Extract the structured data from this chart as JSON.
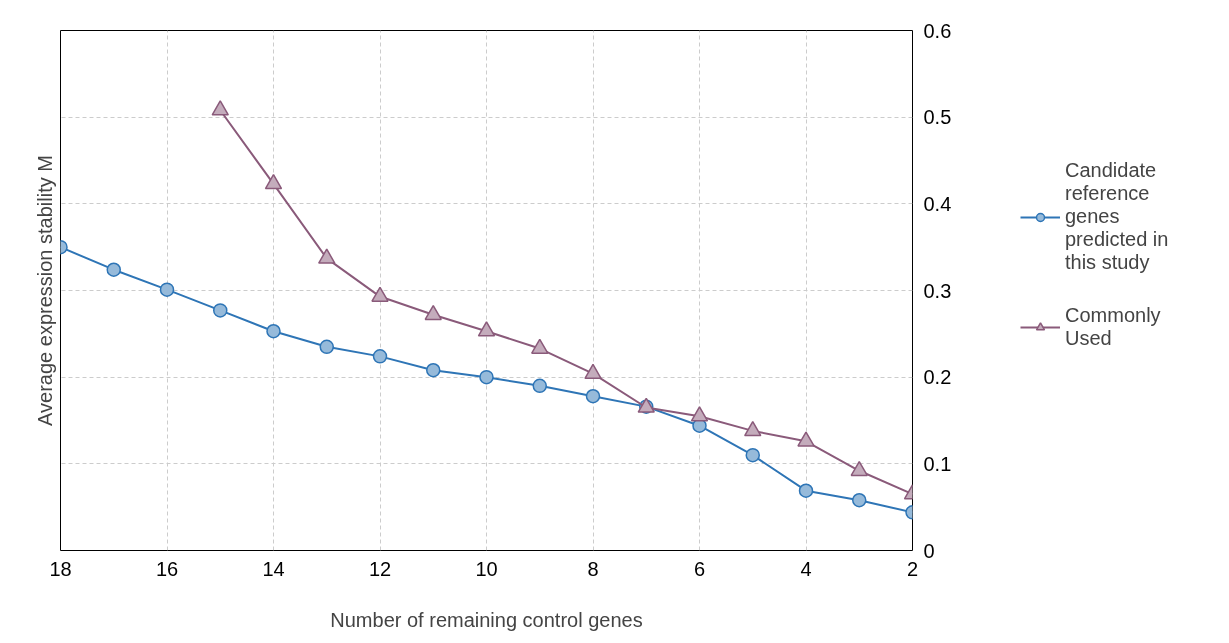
{
  "chart_data": {
    "type": "line",
    "xlabel": "Number of remaining control genes",
    "ylabel": "Average expression stability M",
    "x": [
      18,
      17,
      16,
      15,
      14,
      13,
      12,
      11,
      10,
      9,
      8,
      7,
      6,
      5,
      4,
      3,
      2
    ],
    "series": [
      {
        "name": "Candidate reference genes predicted in this study",
        "color": "#2e75b6",
        "marker": "circle",
        "values": [
          0.35,
          0.324,
          0.301,
          0.277,
          0.253,
          0.235,
          0.224,
          0.208,
          0.2,
          0.19,
          0.178,
          0.166,
          0.144,
          0.11,
          0.069,
          0.058,
          0.044
        ]
      },
      {
        "name": "Commonly Used",
        "color": "#8a5a7a",
        "marker": "triangle",
        "values": [
          null,
          null,
          null,
          0.508,
          0.423,
          0.337,
          0.293,
          0.272,
          0.253,
          0.233,
          0.204,
          0.165,
          0.155,
          0.138,
          0.126,
          0.092,
          0.065
        ]
      }
    ],
    "xlim": [
      18,
      2
    ],
    "xticks": [
      18,
      16,
      14,
      12,
      10,
      8,
      6,
      4,
      2
    ],
    "ylim": [
      0,
      0.6
    ],
    "yticks": [
      0,
      0.1,
      0.2,
      0.3,
      0.4,
      0.5,
      0.6
    ],
    "grid": true,
    "legend": "right"
  }
}
